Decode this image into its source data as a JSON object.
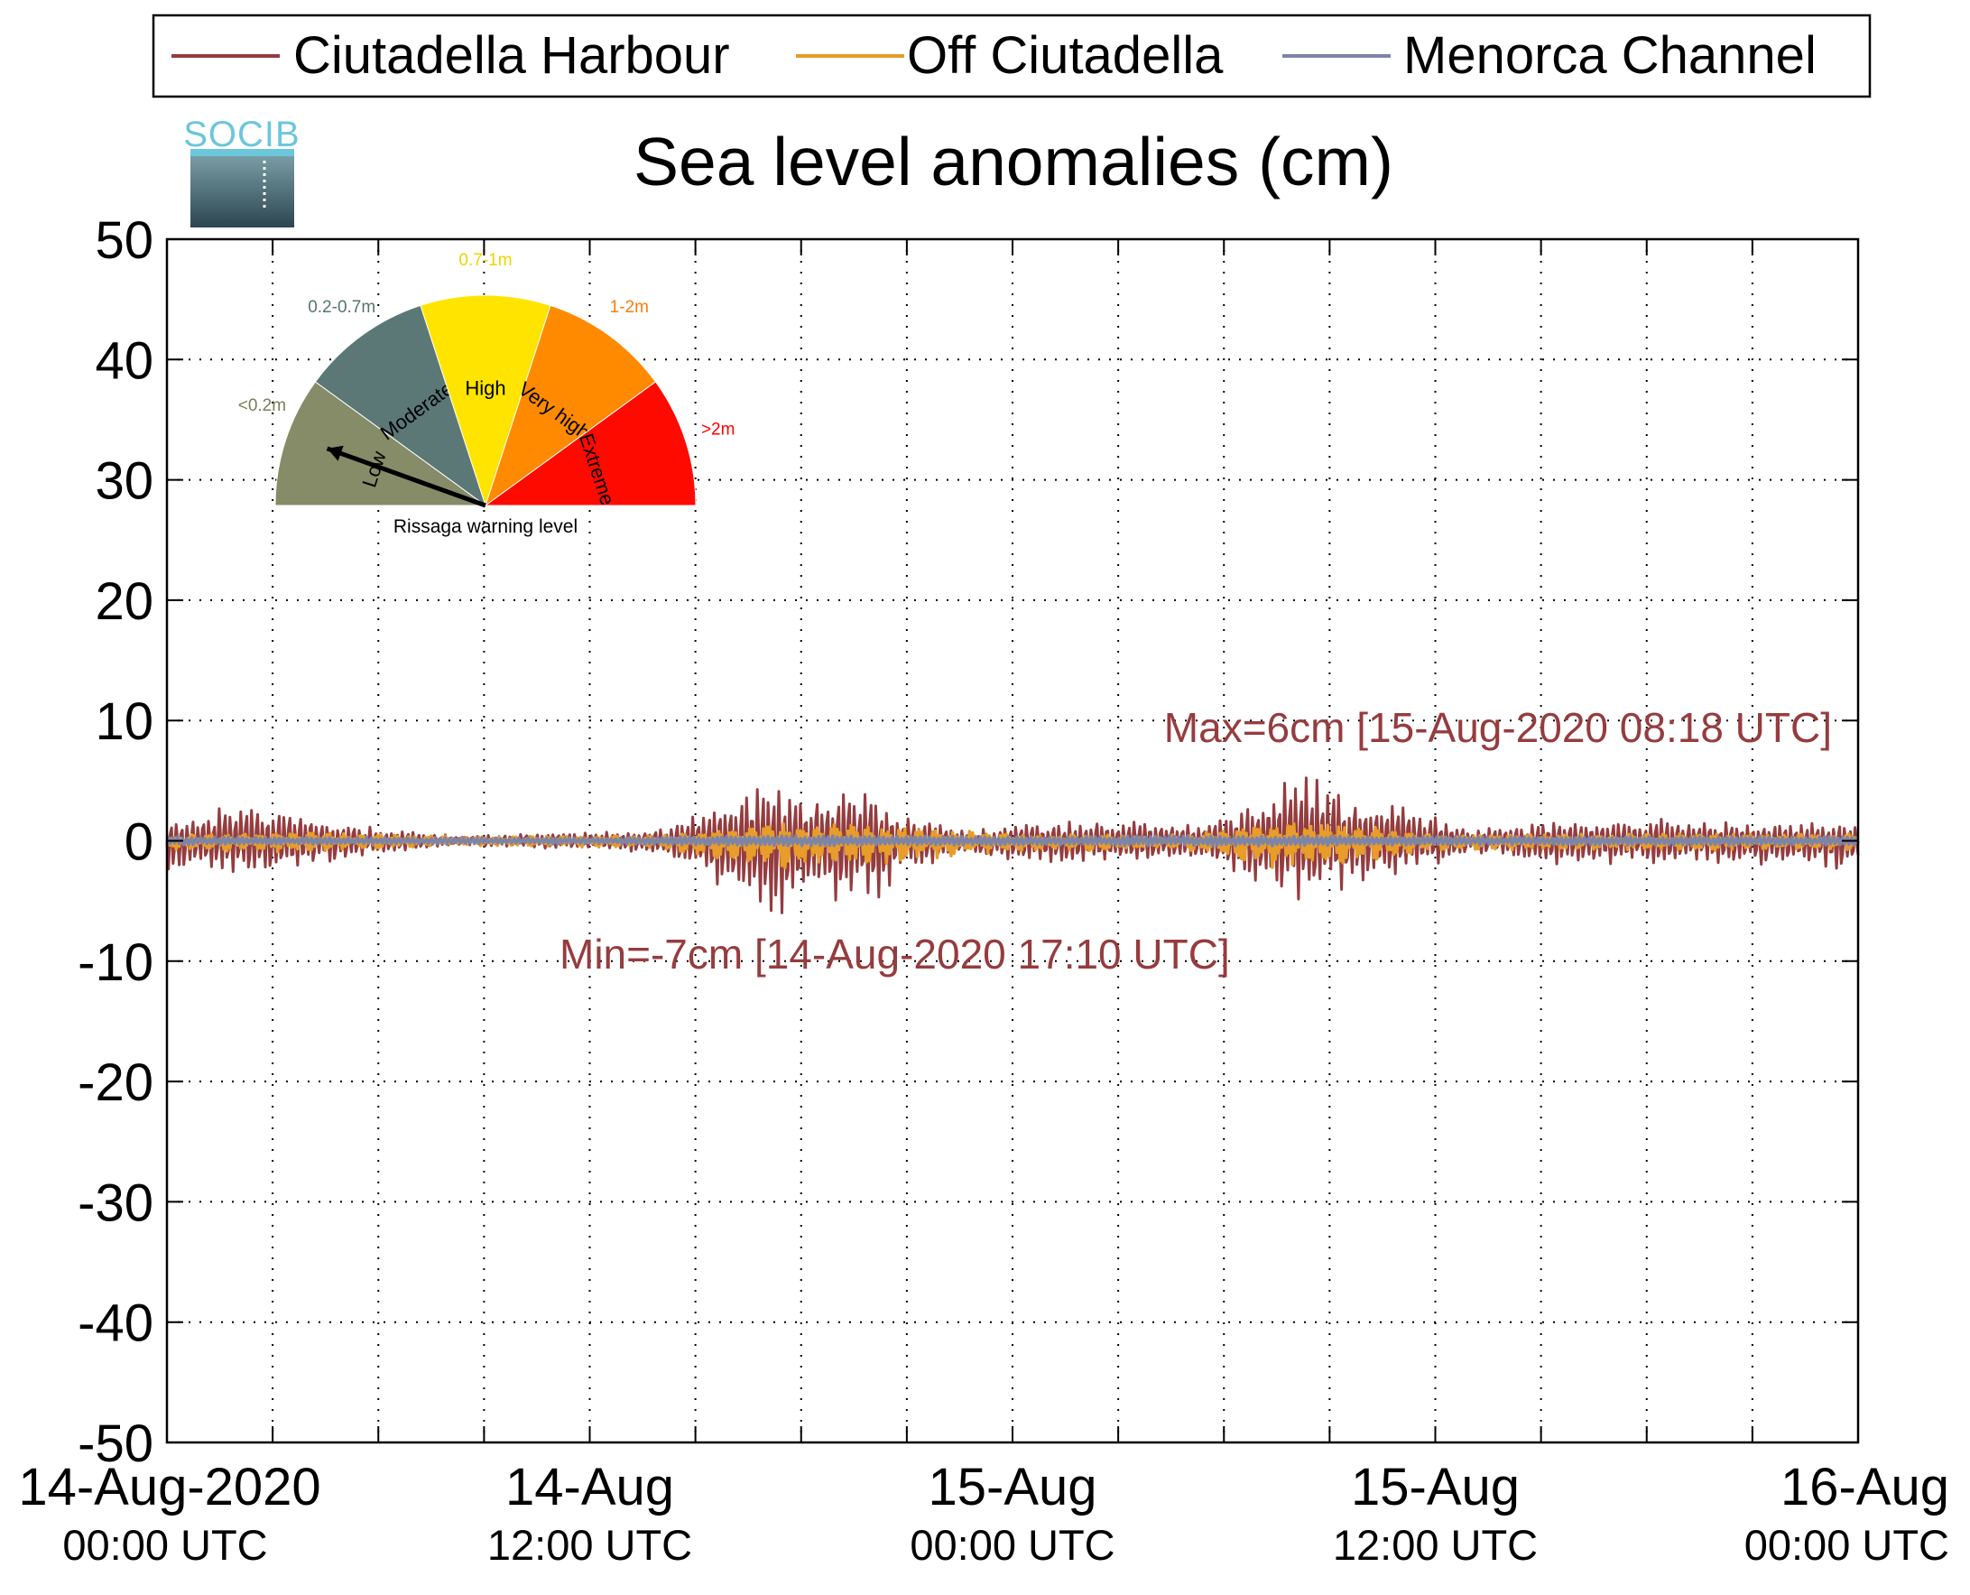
{
  "logo_text": "SOCIB",
  "chart_data": {
    "type": "line",
    "title": "Sea level anomalies (cm)",
    "xlabel": "",
    "ylabel": "",
    "ylim": [
      -50,
      50
    ],
    "yticks": [
      50,
      40,
      30,
      20,
      10,
      0,
      -10,
      -20,
      -30,
      -40,
      -50
    ],
    "xlim": [
      "2020-08-14T00:00",
      "2020-08-16T00:00"
    ],
    "minor_x_gridlines_hours": 3,
    "grid": true,
    "legend_position": "top",
    "xtick_labels": [
      {
        "x": "2020-08-14T00:00",
        "line1": "14-Aug-2020",
        "line2": "00:00 UTC"
      },
      {
        "x": "2020-08-14T12:00",
        "line1": "14-Aug",
        "line2": "12:00 UTC"
      },
      {
        "x": "2020-08-15T00:00",
        "line1": "15-Aug",
        "line2": "00:00 UTC"
      },
      {
        "x": "2020-08-15T12:00",
        "line1": "15-Aug",
        "line2": "12:00 UTC"
      },
      {
        "x": "2020-08-16T00:00",
        "line1": "16-Aug",
        "line2": "00:00 UTC"
      }
    ],
    "series": [
      {
        "name": "Ciutadella Harbour",
        "color": "#953c3f",
        "envelope": {
          "x": [
            "2020-08-14T00:00",
            "2020-08-14T02:00",
            "2020-08-14T04:00",
            "2020-08-14T06:00",
            "2020-08-14T08:00",
            "2020-08-14T10:00",
            "2020-08-14T12:00",
            "2020-08-14T14:00",
            "2020-08-14T15:00",
            "2020-08-14T16:30",
            "2020-08-14T17:10",
            "2020-08-14T18:30",
            "2020-08-14T20:00",
            "2020-08-14T21:00",
            "2020-08-14T23:00",
            "2020-08-15T01:00",
            "2020-08-15T03:00",
            "2020-08-15T05:00",
            "2020-08-15T06:00",
            "2020-08-15T07:00",
            "2020-08-15T08:18",
            "2020-08-15T09:30",
            "2020-08-15T11:00",
            "2020-08-15T13:00",
            "2020-08-15T15:00",
            "2020-08-15T18:00",
            "2020-08-15T21:00",
            "2020-08-16T00:00"
          ],
          "upper": [
            2,
            3,
            2.5,
            1,
            0.5,
            0.6,
            0.8,
            1,
            3,
            4.5,
            4.5,
            4,
            4,
            2,
            1,
            1.5,
            2,
            1.5,
            2,
            4,
            6,
            4,
            3,
            1,
            1.5,
            2,
            1.5,
            1.5
          ],
          "lower": [
            -2.5,
            -3,
            -2.5,
            -1,
            -0.5,
            -0.6,
            -0.8,
            -1,
            -3,
            -5.5,
            -7,
            -5,
            -5.5,
            -2.5,
            -1.5,
            -2,
            -2,
            -1.5,
            -2,
            -4.5,
            -5.5,
            -4,
            -3,
            -1,
            -2,
            -2,
            -2,
            -2.5
          ]
        }
      },
      {
        "name": "Off Ciutadella",
        "color": "#e89c2a",
        "envelope": {
          "x": [
            "2020-08-14T00:00",
            "2020-08-14T04:00",
            "2020-08-14T08:00",
            "2020-08-14T14:00",
            "2020-08-14T17:00",
            "2020-08-14T20:00",
            "2020-08-15T00:00",
            "2020-08-15T05:00",
            "2020-08-15T07:00",
            "2020-08-15T08:30",
            "2020-08-15T12:00",
            "2020-08-15T18:00",
            "2020-08-16T00:00"
          ],
          "upper": [
            0.5,
            0.8,
            0.4,
            0.5,
            1.5,
            1.3,
            0.6,
            0.5,
            1.5,
            1.8,
            0.6,
            0.6,
            0.6
          ],
          "lower": [
            -0.8,
            -1,
            -0.4,
            -0.6,
            -2.5,
            -2,
            -1,
            -0.8,
            -2.5,
            -2.5,
            -0.8,
            -0.8,
            -0.8
          ]
        }
      },
      {
        "name": "Menorca Channel",
        "color": "#7c84a8",
        "envelope": {
          "x": [
            "2020-08-14T00:00",
            "2020-08-14T06:00",
            "2020-08-14T12:00",
            "2020-08-14T18:00",
            "2020-08-15T00:00",
            "2020-08-15T06:00",
            "2020-08-15T12:00",
            "2020-08-15T18:00",
            "2020-08-16T00:00"
          ],
          "upper": [
            0.4,
            0.3,
            0.3,
            0.5,
            0.4,
            0.5,
            0.4,
            0.4,
            0.4
          ],
          "lower": [
            -0.4,
            -0.3,
            -0.3,
            -0.5,
            -0.4,
            -0.5,
            -0.4,
            -0.4,
            -0.4
          ]
        }
      }
    ],
    "annotations": [
      {
        "text": "Max=6cm [15-Aug-2020 08:18 UTC]",
        "color": "#953c3f",
        "x": "2020-08-15T08:18",
        "y": 6
      },
      {
        "text": "Min=-7cm [14-Aug-2020 17:10 UTC]",
        "color": "#953c3f",
        "x": "2020-08-14T17:10",
        "y": -7
      }
    ]
  },
  "gauge": {
    "caption": "Rissaga warning level",
    "needle_level": "Low",
    "segments": [
      {
        "label": "Low",
        "range": "<0.2m",
        "color": "#868c67",
        "range_color": "#7a7e5c"
      },
      {
        "label": "Moderate",
        "range": "0.2-0.7m",
        "color": "#5b7877",
        "range_color": "#567473"
      },
      {
        "label": "High",
        "range": "0.7-1m",
        "color": "#ffe400",
        "range_color": "#f1d300"
      },
      {
        "label": "Very high",
        "range": "1-2m",
        "color": "#ff8a00",
        "range_color": "#ff7d00"
      },
      {
        "label": "Extreme",
        "range": ">2m",
        "color": "#ff0a00",
        "range_color": "#ff0000"
      }
    ]
  }
}
